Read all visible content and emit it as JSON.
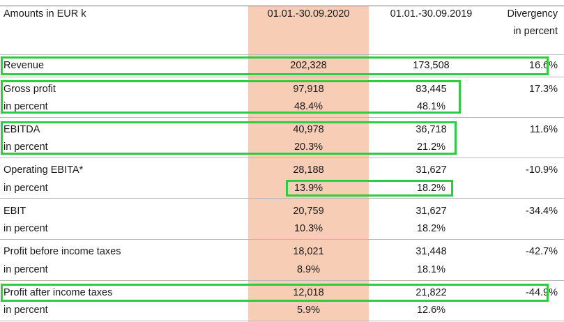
{
  "header": {
    "label": "Amounts in EUR k",
    "col_2020": "01.01.-30.09.2020",
    "col_2019": "01.01.-30.09.2019",
    "col_div_line1": "Divergency",
    "col_div_line2": "in percent"
  },
  "rows": [
    {
      "label": "Revenue",
      "v2020": "202,328",
      "v2019": "173,508",
      "div": "16.6%"
    },
    {
      "label": "Gross profit",
      "v2020": "97,918",
      "v2019": "83,445",
      "div": "17.3%",
      "sub_label": "in percent",
      "s2020": "48.4%",
      "s2019": "48.1%"
    },
    {
      "label": "EBITDA",
      "v2020": "40,978",
      "v2019": "36,718",
      "div": "11.6%",
      "sub_label": "in percent",
      "s2020": "20.3%",
      "s2019": "21.2%"
    },
    {
      "label": "Operating EBITA*",
      "v2020": "28,188",
      "v2019": "31,627",
      "div": "-10.9%",
      "sub_label": "in percent",
      "s2020": "13.9%",
      "s2019": "18.2%"
    },
    {
      "label": "EBIT",
      "v2020": "20,759",
      "v2019": "31,627",
      "div": "-34.4%",
      "sub_label": "in percent",
      "s2020": "10.3%",
      "s2019": "18.2%"
    },
    {
      "label": "Profit before income taxes",
      "v2020": "18,021",
      "v2019": "31,448",
      "div": "-42.7%",
      "sub_label": "in percent",
      "s2020": "8.9%",
      "s2019": "18.1%"
    },
    {
      "label": "Profit after income taxes",
      "v2020": "12,018",
      "v2019": "21,822",
      "div": "-44.9%",
      "sub_label": "in percent",
      "s2020": "5.9%",
      "s2019": "12.6%"
    }
  ],
  "highlight_colors": {
    "column_fill": "#f8cdb6",
    "annotation_box": "#2ecc40"
  }
}
